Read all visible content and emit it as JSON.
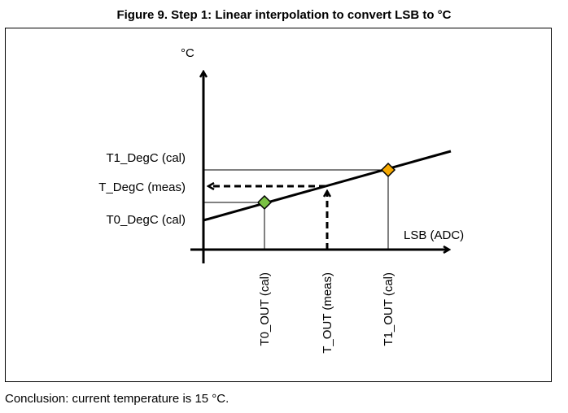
{
  "figure": {
    "title": "Figure 9. Step 1: Linear interpolation to convert LSB to °C",
    "conclusion": "Conclusion: current temperature is 15 °C."
  },
  "diagram": {
    "y_axis_unit": "°C",
    "x_axis_label": "LSB (ADC)",
    "y_labels": {
      "t1": "T1_DegC (cal)",
      "tmeas": "T_DegC (meas)",
      "t0": "T0_DegC (cal)"
    },
    "x_labels": {
      "t0": "T0_OUT (cal)",
      "tmeas": "T_OUT (meas)",
      "t1": "T1_OUT (cal)"
    },
    "marker_colors": {
      "t0": "#7ac143",
      "t1": "#f5a800"
    }
  }
}
